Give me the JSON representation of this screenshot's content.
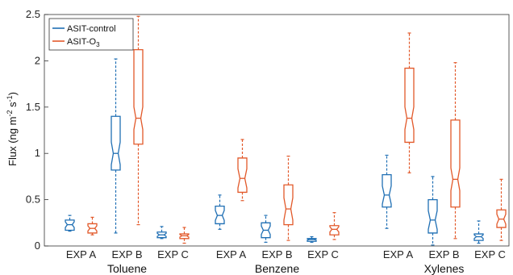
{
  "chart_data": {
    "type": "box",
    "ylabel_parts": {
      "main": "Flux (ng m",
      "exp1": "-2",
      "mid": " s",
      "exp2": "-1",
      "close": ")"
    },
    "ylim": [
      0,
      2.5
    ],
    "yticks": [
      "0",
      "0.5",
      "1",
      "1.5",
      "2",
      "2.5"
    ],
    "yticks_values": [
      0,
      0.5,
      1,
      1.5,
      2,
      2.5
    ],
    "groups": [
      "Toluene",
      "Benzene",
      "Xylenes"
    ],
    "experiments": [
      "EXP A",
      "EXP B",
      "EXP C"
    ],
    "legend": [
      {
        "label": "ASIT-control",
        "color": "#1f6fb4"
      },
      {
        "label_main": "ASIT-O",
        "label_sub": "3",
        "color": "#e2592a"
      }
    ],
    "colors": {
      "control": "#1f6fb4",
      "o3": "#e2592a"
    },
    "series": [
      {
        "name": "ASIT-control",
        "boxes": [
          {
            "group": "Toluene",
            "exp": "EXP A",
            "min": 0.16,
            "q1": 0.17,
            "median": 0.23,
            "q3": 0.28,
            "max": 0.33
          },
          {
            "group": "Toluene",
            "exp": "EXP B",
            "min": 0.14,
            "q1": 0.82,
            "median": 1.0,
            "q3": 1.4,
            "max": 2.02
          },
          {
            "group": "Toluene",
            "exp": "EXP C",
            "min": 0.08,
            "q1": 0.09,
            "median": 0.12,
            "q3": 0.15,
            "max": 0.21
          },
          {
            "group": "Benzene",
            "exp": "EXP A",
            "min": 0.18,
            "q1": 0.24,
            "median": 0.33,
            "q3": 0.43,
            "max": 0.55
          },
          {
            "group": "Benzene",
            "exp": "EXP B",
            "min": 0.04,
            "q1": 0.09,
            "median": 0.17,
            "q3": 0.25,
            "max": 0.33
          },
          {
            "group": "Benzene",
            "exp": "EXP C",
            "min": 0.04,
            "q1": 0.05,
            "median": 0.07,
            "q3": 0.08,
            "max": 0.1
          },
          {
            "group": "Xylenes",
            "exp": "EXP A",
            "min": 0.19,
            "q1": 0.42,
            "median": 0.55,
            "q3": 0.77,
            "max": 0.98
          },
          {
            "group": "Xylenes",
            "exp": "EXP B",
            "min": 0.01,
            "q1": 0.14,
            "median": 0.28,
            "q3": 0.5,
            "max": 0.75
          },
          {
            "group": "Xylenes",
            "exp": "EXP C",
            "min": 0.03,
            "q1": 0.06,
            "median": 0.1,
            "q3": 0.13,
            "max": 0.27
          }
        ]
      },
      {
        "name": "ASIT-O3",
        "boxes": [
          {
            "group": "Toluene",
            "exp": "EXP A",
            "min": 0.12,
            "q1": 0.14,
            "median": 0.19,
            "q3": 0.24,
            "max": 0.31
          },
          {
            "group": "Toluene",
            "exp": "EXP B",
            "min": 0.23,
            "q1": 1.1,
            "median": 1.38,
            "q3": 2.12,
            "max": 2.48
          },
          {
            "group": "Toluene",
            "exp": "EXP C",
            "min": 0.03,
            "q1": 0.08,
            "median": 0.11,
            "q3": 0.13,
            "max": 0.2
          },
          {
            "group": "Benzene",
            "exp": "EXP A",
            "min": 0.49,
            "q1": 0.58,
            "median": 0.73,
            "q3": 0.95,
            "max": 1.15
          },
          {
            "group": "Benzene",
            "exp": "EXP B",
            "min": 0.06,
            "q1": 0.23,
            "median": 0.4,
            "q3": 0.66,
            "max": 0.97
          },
          {
            "group": "Benzene",
            "exp": "EXP C",
            "min": 0.07,
            "q1": 0.12,
            "median": 0.18,
            "q3": 0.22,
            "max": 0.36
          },
          {
            "group": "Xylenes",
            "exp": "EXP A",
            "min": 0.79,
            "q1": 1.12,
            "median": 1.38,
            "q3": 1.92,
            "max": 2.3
          },
          {
            "group": "Xylenes",
            "exp": "EXP B",
            "min": 0.08,
            "q1": 0.42,
            "median": 0.72,
            "q3": 1.36,
            "max": 1.98
          },
          {
            "group": "Xylenes",
            "exp": "EXP C",
            "min": 0.06,
            "q1": 0.2,
            "median": 0.29,
            "q3": 0.39,
            "max": 0.72
          }
        ]
      }
    ]
  }
}
